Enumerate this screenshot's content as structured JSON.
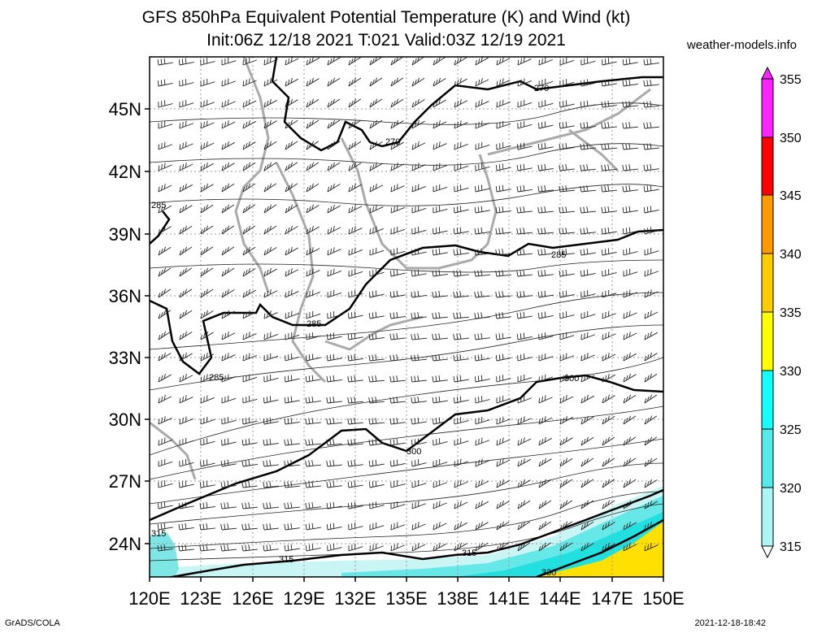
{
  "header": {
    "title_line1": "GFS 850hPa Equivalent Potential Temperature (K) and Wind (kt)",
    "title_line2": "Init:06Z 12/18 2021 T:021 Valid:03Z 12/19 2021",
    "credit": "weather-models.info"
  },
  "map": {
    "lat_labels": [
      "45N",
      "42N",
      "39N",
      "36N",
      "33N",
      "30N",
      "27N",
      "24N"
    ],
    "lon_labels": [
      "120E",
      "123E",
      "126E",
      "129E",
      "132E",
      "135E",
      "138E",
      "141E",
      "144E",
      "147E",
      "150E"
    ],
    "contour_labels": [
      "270",
      "270",
      "285",
      "285",
      "285",
      "285",
      "300",
      "300",
      "315",
      "315",
      "315",
      "330"
    ]
  },
  "colorbar": {
    "labels": [
      "355",
      "350",
      "345",
      "340",
      "335",
      "330",
      "325",
      "320",
      "315"
    ],
    "colors": [
      "#ff22ff",
      "#ff0088",
      "#ff0000",
      "#ff8800",
      "#ffbb00",
      "#ffee00",
      "#00ffff",
      "#33e6e6",
      "#88f0f0",
      "#bff7f7",
      "#ffffff"
    ]
  },
  "footer": {
    "left": "GrADS/COLA",
    "right": "2021-12-18-18:42"
  }
}
